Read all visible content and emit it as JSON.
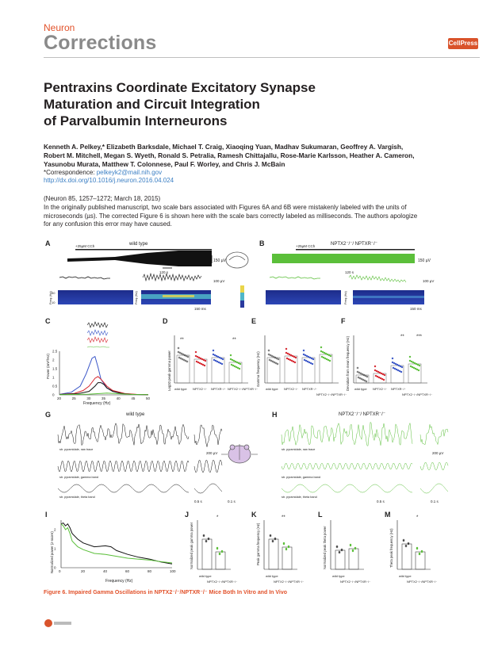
{
  "header": {
    "journal": "Neuron",
    "section": "Corrections",
    "publisher_logo": "CellPress"
  },
  "article": {
    "title_lines": [
      "Pentraxins Coordinate Excitatory Synapse",
      "Maturation and Circuit Integration",
      "of Parvalbumin Interneurons"
    ],
    "author_lines": [
      "Kenneth A. Pelkey,* Elizabeth Barksdale, Michael T. Craig, Xiaoqing Yuan, Madhav Sukumaran, Geoffrey A. Vargish,",
      "Robert M. Mitchell, Megan S. Wyeth, Ronald S. Petralia, Ramesh Chittajallu, Rose-Marie Karlsson, Heather A. Cameron,",
      "Yasunobu Murata, Matthew T. Colonnese, Paul F. Worley, and Chris J. McBain"
    ],
    "correspondence_label": "*Correspondence:",
    "correspondence_email": "pelkeyk2@mail.nih.gov",
    "doi": "http://dx.doi.org/10.1016/j.neuron.2016.04.024",
    "citation": "(Neuron 85, 1257–1272; March 18, 2015)",
    "body_lines": [
      "In the originally published manuscript, two scale bars associated with Figures 6A and 6B were mistakenly labeled with the units of",
      "microseconds (µs). The corrected Figure 6 is shown here with the scale bars correctly labeled as milliseconds. The authors apologize",
      "for any confusion this error may have caused."
    ]
  },
  "figure": {
    "panel_letters": [
      "A",
      "B",
      "C",
      "D",
      "E",
      "F",
      "G",
      "H",
      "I",
      "J",
      "K",
      "L",
      "M"
    ],
    "labels": {
      "A_title": "wild type",
      "B_title": "NPTX2⁻/⁻/ NPTXR⁻/⁻",
      "G_title": "wild type",
      "H_title": "NPTX2⁻/⁻/ NPTXR⁻/⁻",
      "ccl": "+25µM CCh",
      "sb_150uv": "150 µV",
      "sb_100uv": "100 µV",
      "sb_200uv": "200 µV",
      "sb_120s": "120 s",
      "sb_150ms": "150 ms",
      "sb_05s": "0.5 s",
      "sb_01s": "0.1 s",
      "freq_hz": "Freq (Hz)",
      "tick_50": "50",
      "tick_10": "10",
      "trace_raw": "str. pyramidale, raw trace",
      "trace_gamma": "str. pyramidale, gamma band",
      "trace_theta": "str. pyramidale, theta band",
      "C_ylabel": "Power (mV²/Hz)",
      "C_xlabel": "Frequency (Hz)",
      "D_ylabel": "Log10 peak gamma power",
      "E_ylabel": "Gamma frequency (Hz)",
      "F_ylabel": "Deviation from mean frequency (Hz)",
      "I_ylabel": "Normalized power (z-score)",
      "I_xlabel": "Frequency (Hz)",
      "J_ylabel": "Normalized peak gamma power",
      "K_ylabel": "Peak gamma frequency (Hz)",
      "L_ylabel": "Normalized peak theta power",
      "M_ylabel": "Theta peak frequency (Hz)",
      "groups_4": [
        "wild type",
        "NPTX2⁻/⁻",
        "NPTXR⁻/⁻",
        "NPTX2⁻/⁻/NPTXR⁻/⁻"
      ],
      "groups_2": [
        "wild type",
        "NPTX2⁻/⁻/NPTXR⁻/⁻"
      ],
      "sig_double": "**",
      "sig_triple": "***",
      "sig_single": "*"
    },
    "colors": {
      "wild_type": "#111111",
      "dko": "#5bbf3a",
      "nptx2": "#d6262e",
      "nptxr": "#3a56c8",
      "spectrogram_bg": "#2a3a9e"
    },
    "caption": "Figure 6.  Impaired Gamma Oscillations in NPTX2⁻/⁻/NPTXR⁻/⁻ Mice Both In Vitro and In Vivo"
  },
  "chart_data": [
    {
      "type": "line",
      "panel": "C",
      "xlabel": "Frequency (Hz)",
      "ylabel": "Power (mV²/Hz)",
      "xlim": [
        20,
        50
      ],
      "ticks_x": [
        20,
        25,
        30,
        35,
        40,
        45,
        50
      ],
      "ticks_y": [
        0.0,
        0.5,
        1.0,
        1.5,
        2.0,
        2.5
      ],
      "ylim": [
        0,
        2.5
      ],
      "series": [
        {
          "color": "#3a56c8",
          "x": [
            20,
            24,
            27,
            29,
            31,
            32,
            33,
            34,
            36,
            38,
            41,
            45,
            50
          ],
          "y": [
            0.03,
            0.15,
            0.5,
            1.2,
            2.1,
            2.2,
            1.6,
            0.9,
            0.4,
            0.2,
            0.08,
            0.03,
            0.01
          ]
        },
        {
          "color": "#d6262e",
          "x": [
            20,
            25,
            28,
            30,
            32,
            33,
            34,
            35,
            36,
            38,
            42,
            46,
            50
          ],
          "y": [
            0.02,
            0.08,
            0.25,
            0.5,
            0.95,
            1.05,
            0.9,
            0.7,
            0.5,
            0.25,
            0.08,
            0.03,
            0.01
          ]
        },
        {
          "color": "#111111",
          "x": [
            20,
            26,
            30,
            32,
            33,
            34,
            35,
            36,
            38,
            41,
            44,
            50
          ],
          "y": [
            0.02,
            0.06,
            0.2,
            0.5,
            0.7,
            0.7,
            0.6,
            0.4,
            0.2,
            0.08,
            0.03,
            0.01
          ]
        },
        {
          "color": "#5bbf3a",
          "x": [
            20,
            30,
            34,
            36,
            40,
            45,
            50
          ],
          "y": [
            0.01,
            0.04,
            0.08,
            0.1,
            0.06,
            0.02,
            0.01
          ]
        }
      ]
    },
    {
      "type": "line",
      "panel": "I",
      "xlabel": "Frequency (Hz)",
      "ylabel": "Normalized power (z-score)",
      "xlim": [
        0,
        100
      ],
      "ticks_x": [
        0,
        20,
        40,
        60,
        80,
        100
      ],
      "ticks_y": [
        0,
        1,
        2
      ],
      "ylim": [
        0,
        2.5
      ],
      "series": [
        {
          "color": "#111111",
          "x": [
            0,
            2,
            4,
            6,
            8,
            10,
            15,
            20,
            30,
            40,
            45,
            50,
            60,
            70,
            80,
            90,
            100
          ],
          "y": [
            2.3,
            2.35,
            2.2,
            2.3,
            2.1,
            1.8,
            1.5,
            1.3,
            1.1,
            1.15,
            1.1,
            0.9,
            0.7,
            0.55,
            0.45,
            0.3,
            0.2
          ]
        },
        {
          "color": "#5bbf3a",
          "x": [
            0,
            2,
            4,
            6,
            8,
            10,
            15,
            20,
            30,
            40,
            50,
            60,
            70,
            80,
            90,
            100
          ],
          "y": [
            2.3,
            2.2,
            2.0,
            2.1,
            1.8,
            1.4,
            1.1,
            0.95,
            0.75,
            0.7,
            0.6,
            0.5,
            0.45,
            0.4,
            0.32,
            0.25
          ]
        }
      ]
    }
  ]
}
